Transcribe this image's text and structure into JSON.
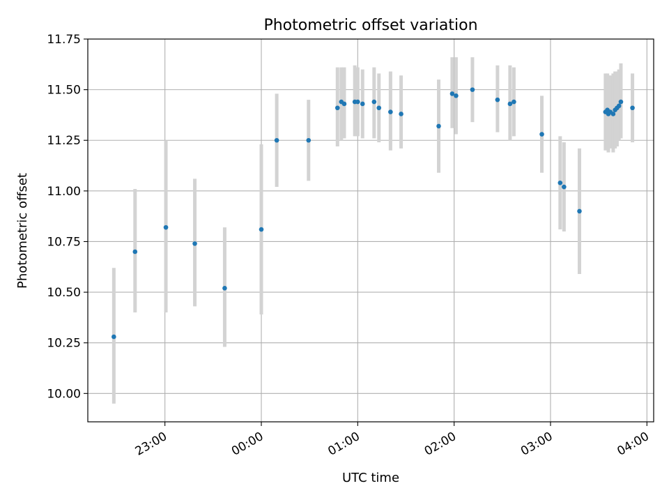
{
  "chart_data": {
    "type": "scatter",
    "title": "Photometric offset variation",
    "xlabel": "UTC time",
    "ylabel": "Photometric offset",
    "x_unit": "hours since 00:00 UTC",
    "xlim": [
      -1.8,
      4.07
    ],
    "ylim": [
      9.86,
      11.75
    ],
    "grid": true,
    "legend": "none",
    "colors": {
      "point": "#1f77b4",
      "errorbar": "#d3d3d3",
      "grid": "#b0b0b0"
    },
    "x_ticks": [
      {
        "value": -1,
        "label": "23:00"
      },
      {
        "value": 0,
        "label": "00:00"
      },
      {
        "value": 1,
        "label": "01:00"
      },
      {
        "value": 2,
        "label": "02:00"
      },
      {
        "value": 3,
        "label": "03:00"
      },
      {
        "value": 4,
        "label": "04:00"
      }
    ],
    "y_ticks": [
      {
        "value": 10.0,
        "label": "10.00"
      },
      {
        "value": 10.25,
        "label": "10.25"
      },
      {
        "value": 10.5,
        "label": "10.50"
      },
      {
        "value": 10.75,
        "label": "10.75"
      },
      {
        "value": 11.0,
        "label": "11.00"
      },
      {
        "value": 11.25,
        "label": "11.25"
      },
      {
        "value": 11.5,
        "label": "11.50"
      },
      {
        "value": 11.75,
        "label": "11.75"
      }
    ],
    "points": [
      {
        "x": -1.53,
        "y": 10.28,
        "lo": 9.95,
        "hi": 10.62
      },
      {
        "x": -1.31,
        "y": 10.7,
        "lo": 10.4,
        "hi": 11.01
      },
      {
        "x": -0.99,
        "y": 10.82,
        "lo": 10.4,
        "hi": 11.25
      },
      {
        "x": -0.69,
        "y": 10.74,
        "lo": 10.43,
        "hi": 11.06
      },
      {
        "x": -0.38,
        "y": 10.52,
        "lo": 10.23,
        "hi": 10.82
      },
      {
        "x": 0.0,
        "y": 10.81,
        "lo": 10.39,
        "hi": 11.23
      },
      {
        "x": 0.16,
        "y": 11.25,
        "lo": 11.02,
        "hi": 11.48
      },
      {
        "x": 0.49,
        "y": 11.25,
        "lo": 11.05,
        "hi": 11.45
      },
      {
        "x": 0.79,
        "y": 11.41,
        "lo": 11.22,
        "hi": 11.61
      },
      {
        "x": 0.83,
        "y": 11.44,
        "lo": 11.25,
        "hi": 11.61
      },
      {
        "x": 0.86,
        "y": 11.43,
        "lo": 11.26,
        "hi": 11.61
      },
      {
        "x": 0.97,
        "y": 11.44,
        "lo": 11.27,
        "hi": 11.62
      },
      {
        "x": 1.0,
        "y": 11.44,
        "lo": 11.27,
        "hi": 11.61
      },
      {
        "x": 1.05,
        "y": 11.43,
        "lo": 11.26,
        "hi": 11.6
      },
      {
        "x": 1.17,
        "y": 11.44,
        "lo": 11.26,
        "hi": 11.61
      },
      {
        "x": 1.22,
        "y": 11.41,
        "lo": 11.24,
        "hi": 11.58
      },
      {
        "x": 1.34,
        "y": 11.39,
        "lo": 11.2,
        "hi": 11.59
      },
      {
        "x": 1.45,
        "y": 11.38,
        "lo": 11.21,
        "hi": 11.57
      },
      {
        "x": 1.84,
        "y": 11.32,
        "lo": 11.09,
        "hi": 11.55
      },
      {
        "x": 1.98,
        "y": 11.48,
        "lo": 11.31,
        "hi": 11.66
      },
      {
        "x": 2.02,
        "y": 11.47,
        "lo": 11.28,
        "hi": 11.66
      },
      {
        "x": 2.19,
        "y": 11.5,
        "lo": 11.34,
        "hi": 11.66
      },
      {
        "x": 2.45,
        "y": 11.45,
        "lo": 11.29,
        "hi": 11.62
      },
      {
        "x": 2.58,
        "y": 11.43,
        "lo": 11.25,
        "hi": 11.62
      },
      {
        "x": 2.62,
        "y": 11.44,
        "lo": 11.27,
        "hi": 11.61
      },
      {
        "x": 2.91,
        "y": 11.28,
        "lo": 11.09,
        "hi": 11.47
      },
      {
        "x": 3.1,
        "y": 11.04,
        "lo": 10.81,
        "hi": 11.27
      },
      {
        "x": 3.14,
        "y": 11.02,
        "lo": 10.8,
        "hi": 11.24
      },
      {
        "x": 3.3,
        "y": 10.9,
        "lo": 10.59,
        "hi": 11.21
      },
      {
        "x": 3.57,
        "y": 11.39,
        "lo": 11.2,
        "hi": 11.58
      },
      {
        "x": 3.59,
        "y": 11.4,
        "lo": 11.21,
        "hi": 11.58
      },
      {
        "x": 3.6,
        "y": 11.38,
        "lo": 11.19,
        "hi": 11.57
      },
      {
        "x": 3.62,
        "y": 11.39,
        "lo": 11.21,
        "hi": 11.57
      },
      {
        "x": 3.65,
        "y": 11.38,
        "lo": 11.19,
        "hi": 11.58
      },
      {
        "x": 3.67,
        "y": 11.4,
        "lo": 11.21,
        "hi": 11.59
      },
      {
        "x": 3.69,
        "y": 11.41,
        "lo": 11.22,
        "hi": 11.59
      },
      {
        "x": 3.71,
        "y": 11.42,
        "lo": 11.25,
        "hi": 11.6
      },
      {
        "x": 3.73,
        "y": 11.44,
        "lo": 11.26,
        "hi": 11.63
      },
      {
        "x": 3.85,
        "y": 11.41,
        "lo": 11.24,
        "hi": 11.58
      }
    ]
  }
}
